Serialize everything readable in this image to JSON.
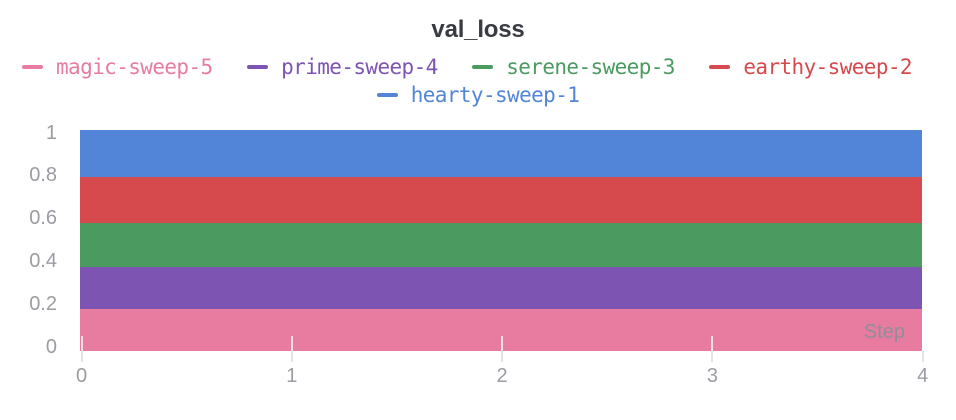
{
  "chart_data": {
    "type": "area",
    "title": "val_loss",
    "xlabel": "Step",
    "ylabel": "",
    "xlim": [
      0,
      4
    ],
    "ylim": [
      0,
      1
    ],
    "x_ticks": [
      0,
      1,
      2,
      3,
      4
    ],
    "y_ticks": [
      0,
      0.2,
      0.4,
      0.6,
      0.8,
      1
    ],
    "grid": false,
    "legend_position": "top",
    "legend_rows": [
      [
        "magic-sweep-5",
        "prime-sweep-4",
        "serene-sweep-3",
        "earthy-sweep-2"
      ],
      [
        "hearty-sweep-1"
      ]
    ],
    "series": [
      {
        "name": "magic-sweep-5",
        "color": "#e87ba0",
        "value": 0.08,
        "band": [
          -0.019,
          0.175
        ]
      },
      {
        "name": "prime-sweep-4",
        "color": "#7d54b2",
        "value": 0.28,
        "band": [
          0.175,
          0.373
        ]
      },
      {
        "name": "serene-sweep-3",
        "color": "#4b9a60",
        "value": 0.48,
        "band": [
          0.373,
          0.578
        ]
      },
      {
        "name": "earthy-sweep-2",
        "color": "#d6494d",
        "value": 0.69,
        "band": [
          0.578,
          0.793
        ]
      },
      {
        "name": "hearty-sweep-1",
        "color": "#5285d8",
        "value": 0.9,
        "band": [
          0.793,
          1.012
        ]
      }
    ]
  }
}
